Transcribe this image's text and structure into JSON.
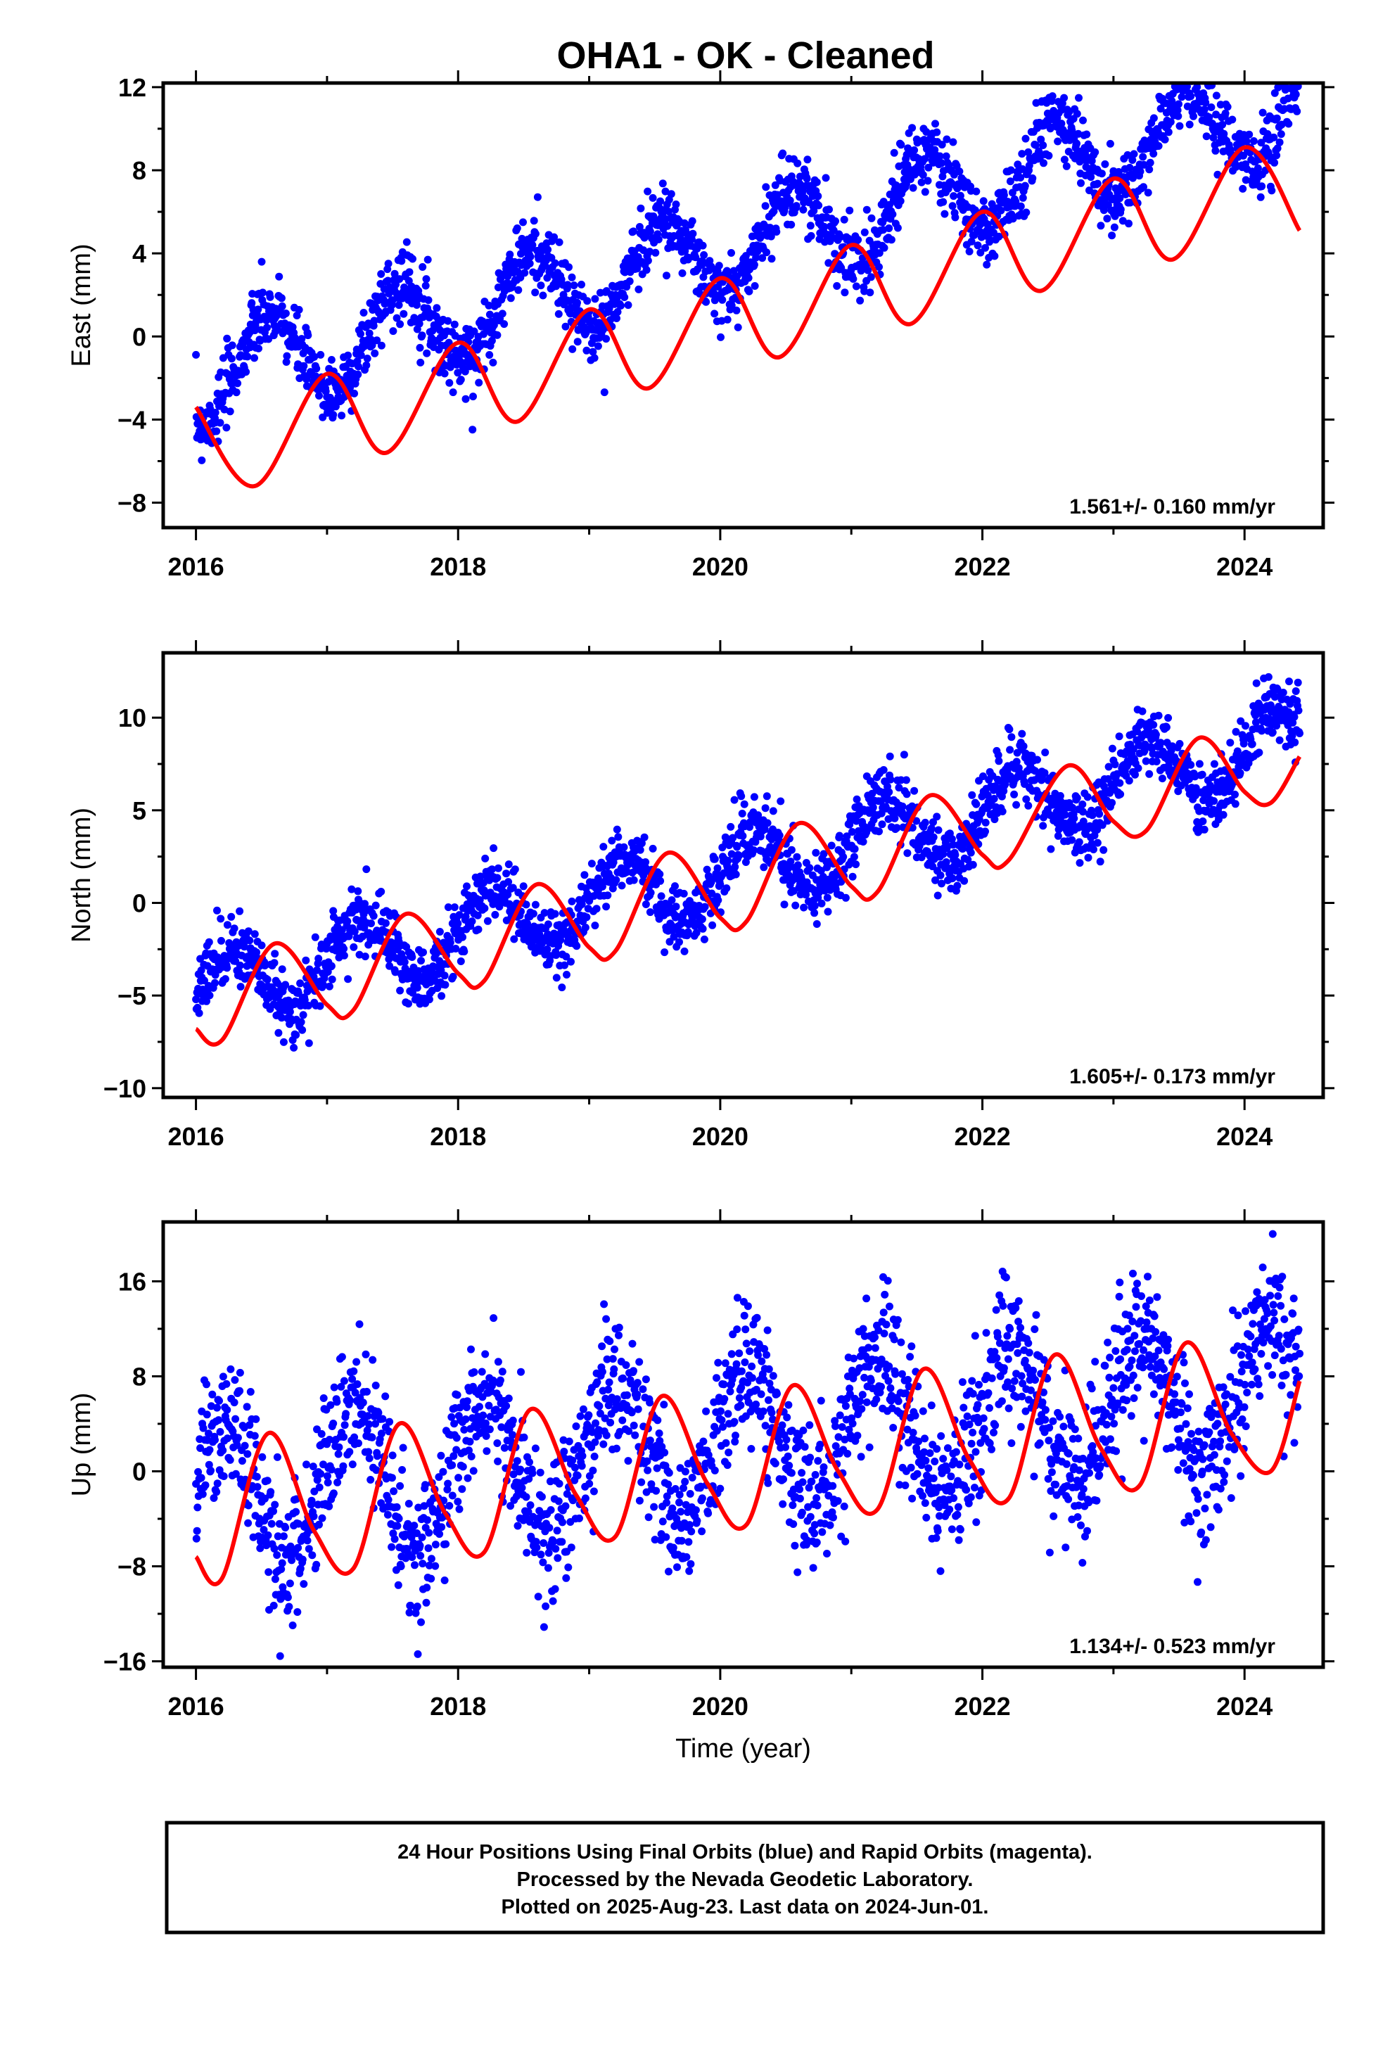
{
  "chart_title": "OHA1  - OK - Cleaned",
  "chart_data": [
    {
      "type": "scatter",
      "ylabel": "East (mm)",
      "xlabel": "",
      "xlim": [
        2015.75,
        2024.6
      ],
      "ylim": [
        -9.2,
        12.2
      ],
      "xticks": [
        2016,
        2018,
        2020,
        2022,
        2024
      ],
      "yticks": [
        -8,
        -4,
        0,
        4,
        8,
        12
      ],
      "ytick_labels": [
        "−8",
        "−4",
        "0",
        "4",
        "8",
        "12"
      ],
      "rate_label": "1.561+/- 0.160 mm/yr",
      "series": [
        {
          "color": "#0000ff",
          "marker": "dot",
          "trend": 1.561,
          "amp": 2.2,
          "phase": 4.4,
          "noise": 0.85,
          "offset": -2.1
        },
        {
          "color": "#ff0000",
          "marker": "line",
          "x": [
            2016.0,
            2016.45,
            2017.0,
            2017.45,
            2018.0,
            2018.45,
            2019.0,
            2019.45,
            2020.0,
            2020.45,
            2021.0,
            2021.45,
            2022.0,
            2022.45,
            2023.0,
            2023.45,
            2024.0,
            2024.42
          ],
          "y": [
            -3.4,
            -7.2,
            -1.8,
            -5.6,
            -0.3,
            -4.1,
            1.3,
            -2.5,
            2.8,
            -1.0,
            4.4,
            0.6,
            6.0,
            2.2,
            7.6,
            3.7,
            9.1,
            5.1
          ]
        }
      ]
    },
    {
      "type": "scatter",
      "ylabel": "North (mm)",
      "xlabel": "",
      "xlim": [
        2015.75,
        2024.6
      ],
      "ylim": [
        -10.5,
        13.5
      ],
      "xticks": [
        2016,
        2018,
        2020,
        2022,
        2024
      ],
      "yticks": [
        -10,
        -5,
        0,
        5,
        10
      ],
      "ytick_labels": [
        "−10",
        "−5",
        "0",
        "5",
        "10"
      ],
      "rate_label": "1.605+/- 0.173 mm/yr",
      "series": [
        {
          "color": "#0000ff",
          "marker": "dot",
          "trend": 1.605,
          "amp": 2.0,
          "phase": 0.0,
          "noise": 0.9,
          "offset": -4.8
        },
        {
          "color": "#ff0000",
          "marker": "line",
          "x": [
            2016.0,
            2016.2,
            2016.6,
            2017.0,
            2017.2,
            2017.6,
            2018.0,
            2018.2,
            2018.6,
            2019.0,
            2019.2,
            2019.6,
            2020.0,
            2020.2,
            2020.6,
            2021.0,
            2021.2,
            2021.6,
            2022.0,
            2022.2,
            2022.65,
            2023.0,
            2023.25,
            2023.65,
            2024.0,
            2024.2,
            2024.42
          ],
          "y": [
            -6.8,
            -7.4,
            -2.2,
            -5.5,
            -5.8,
            -0.6,
            -3.8,
            -4.2,
            1.0,
            -2.4,
            -2.6,
            2.7,
            -0.8,
            -1.0,
            4.3,
            0.9,
            0.6,
            5.8,
            2.6,
            2.3,
            7.4,
            4.4,
            3.9,
            8.9,
            6.0,
            5.4,
            7.9
          ]
        }
      ]
    },
    {
      "type": "scatter",
      "ylabel": "Up (mm)",
      "xlabel": "Time (year)",
      "xlim": [
        2015.75,
        2024.6
      ],
      "ylim": [
        -16.5,
        21
      ],
      "xticks": [
        2016,
        2018,
        2020,
        2022,
        2024
      ],
      "yticks": [
        -16,
        -8,
        0,
        8,
        16
      ],
      "ytick_labels": [
        "−16",
        "−8",
        "0",
        "8",
        "16"
      ],
      "rate_label": "1.134+/- 0.523 mm/yr",
      "series": [
        {
          "color": "#0000ff",
          "marker": "dot",
          "trend": 1.134,
          "amp": 6.0,
          "phase": 0.3,
          "noise": 3.0,
          "offset": -2.5
        },
        {
          "color": "#ff0000",
          "marker": "line",
          "x": [
            2016.0,
            2016.2,
            2016.55,
            2016.9,
            2017.2,
            2017.55,
            2017.9,
            2018.2,
            2018.55,
            2018.9,
            2019.2,
            2019.55,
            2019.9,
            2020.2,
            2020.55,
            2020.9,
            2021.2,
            2021.55,
            2021.9,
            2022.2,
            2022.55,
            2022.9,
            2023.2,
            2023.55,
            2023.9,
            2024.2,
            2024.42
          ],
          "y": [
            -7.2,
            -9.0,
            3.2,
            -5.0,
            -8.2,
            4.0,
            -3.5,
            -6.8,
            5.2,
            -2.0,
            -5.5,
            6.3,
            -1.0,
            -4.5,
            7.2,
            0.0,
            -3.2,
            8.6,
            1.0,
            -2.3,
            9.8,
            2.0,
            -1.2,
            10.8,
            3.2,
            0.0,
            7.6
          ]
        }
      ]
    }
  ],
  "footer": {
    "line1": "24 Hour Positions Using Final Orbits (blue) and Rapid Orbits (magenta).",
    "line2": "Processed by the Nevada Geodetic Laboratory.",
    "line3": "Plotted on 2025-Aug-23. Last data on 2024-Jun-01."
  }
}
